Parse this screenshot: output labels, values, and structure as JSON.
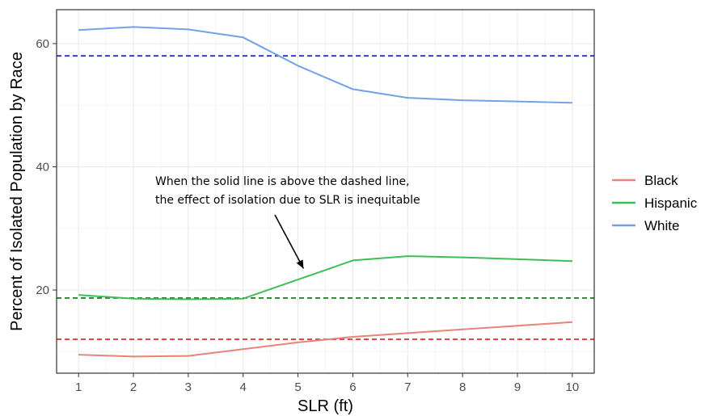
{
  "chart_data": {
    "type": "line",
    "title": "",
    "xlabel": "SLR (ft)",
    "ylabel": "Percent of Isolated Population by Race",
    "x": [
      1,
      2,
      3,
      4,
      5,
      6,
      7,
      8,
      9,
      10
    ],
    "x_ticks": [
      "1",
      "2",
      "3",
      "4",
      "5",
      "6",
      "7",
      "8",
      "9",
      "10"
    ],
    "y_ticks": [
      "20",
      "40",
      "60"
    ],
    "xlim": [
      0.6,
      10.4
    ],
    "ylim": [
      6.5,
      65.5
    ],
    "grid": true,
    "legend_position": "right",
    "series": [
      {
        "name": "Black",
        "color": "#e8837a",
        "values": [
          9.5,
          9.2,
          9.3,
          10.4,
          11.5,
          12.4,
          13.0,
          13.6,
          14.2,
          14.8
        ]
      },
      {
        "name": "Hispanic",
        "color": "#3dbf58",
        "values": [
          19.2,
          18.6,
          18.5,
          18.6,
          21.7,
          24.8,
          25.5,
          25.3,
          25.0,
          24.7
        ]
      },
      {
        "name": "White",
        "color": "#6fa3e6",
        "values": [
          62.2,
          62.7,
          62.3,
          61.0,
          56.4,
          52.6,
          51.2,
          50.8,
          50.6,
          50.4
        ]
      }
    ],
    "reference_lines": [
      {
        "series": "White",
        "y": 58.0,
        "color": "#2b2bd4",
        "style": "dashed"
      },
      {
        "series": "Hispanic",
        "y": 18.7,
        "color": "#2e7d32",
        "style": "dashed"
      },
      {
        "series": "Black",
        "y": 12.0,
        "color": "#e53935",
        "style": "dashed"
      }
    ],
    "annotation": {
      "lines": [
        "When the solid line is above the dashed line,",
        "the effect of isolation due to SLR is inequitable"
      ],
      "arrow_to": {
        "x": 5.1,
        "y": 23.5
      }
    }
  }
}
